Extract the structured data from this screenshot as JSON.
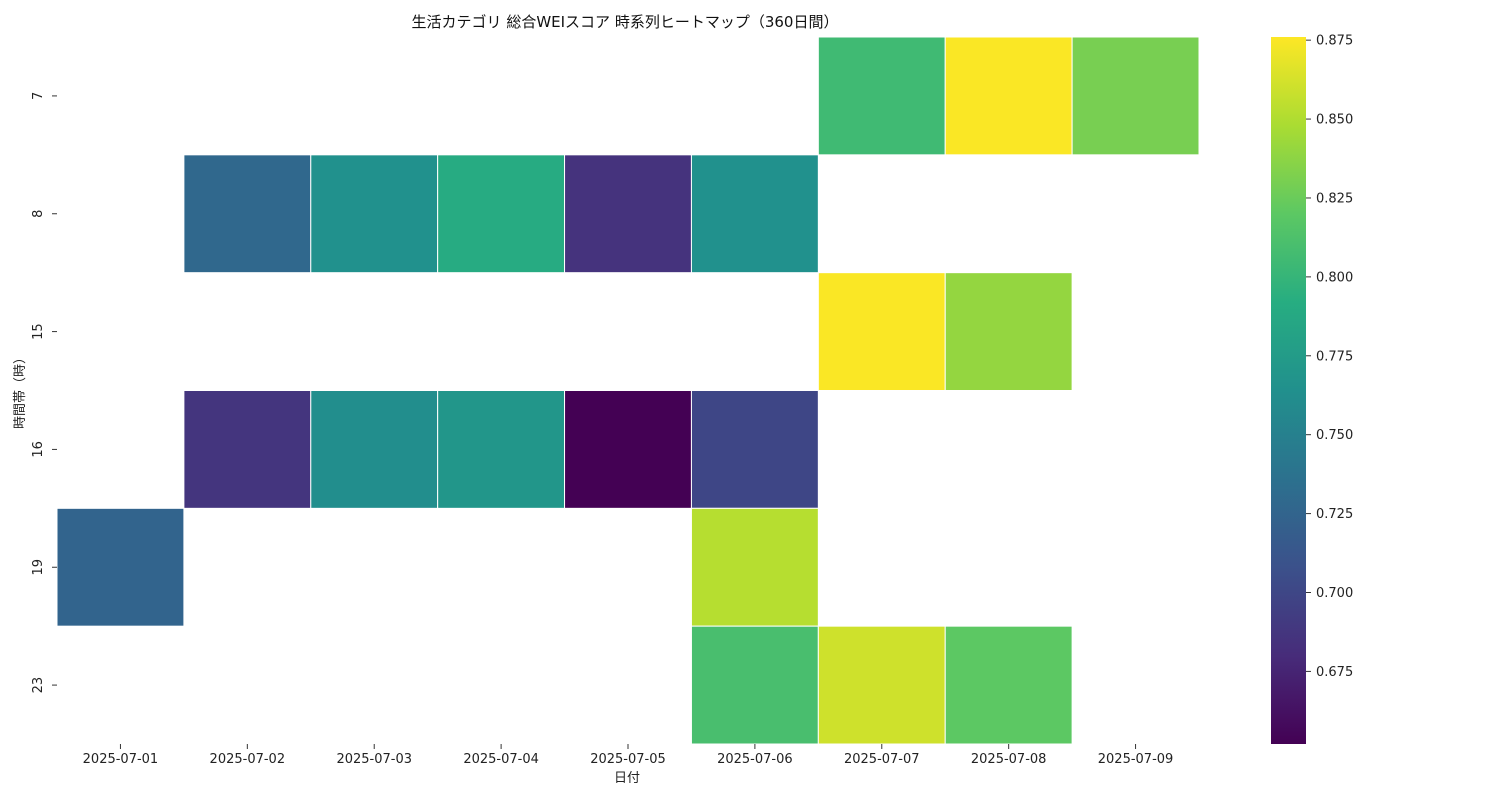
{
  "chart_data": {
    "type": "heatmap",
    "title": "生活カテゴリ 総合WEIスコア 時系列ヒートマップ（360日間）",
    "xlabel": "日付",
    "ylabel": "時間帯（時）",
    "x_categories": [
      "2025-07-01",
      "2025-07-02",
      "2025-07-03",
      "2025-07-04",
      "2025-07-05",
      "2025-07-06",
      "2025-07-07",
      "2025-07-08",
      "2025-07-09"
    ],
    "y_categories": [
      "7",
      "8",
      "15",
      "16",
      "19",
      "23"
    ],
    "values": [
      [
        null,
        null,
        null,
        null,
        null,
        null,
        0.805,
        0.875,
        0.83
      ],
      [
        null,
        0.728,
        0.765,
        0.79,
        0.685,
        0.765,
        null,
        null,
        null
      ],
      [
        null,
        null,
        null,
        null,
        null,
        null,
        0.875,
        0.84,
        null
      ],
      [
        null,
        0.687,
        0.762,
        0.77,
        0.652,
        0.7,
        null,
        null,
        null
      ],
      [
        0.725,
        null,
        null,
        null,
        null,
        0.852,
        null,
        null,
        null
      ],
      [
        null,
        null,
        null,
        null,
        null,
        0.81,
        0.86,
        0.82,
        null
      ]
    ],
    "colormap": "viridis",
    "value_range": [
      0.652,
      0.876
    ],
    "colorbar_ticks": [
      "0.675",
      "0.700",
      "0.725",
      "0.750",
      "0.775",
      "0.800",
      "0.825",
      "0.850",
      "0.875"
    ],
    "grid": false,
    "legend": "colorbar-right"
  }
}
